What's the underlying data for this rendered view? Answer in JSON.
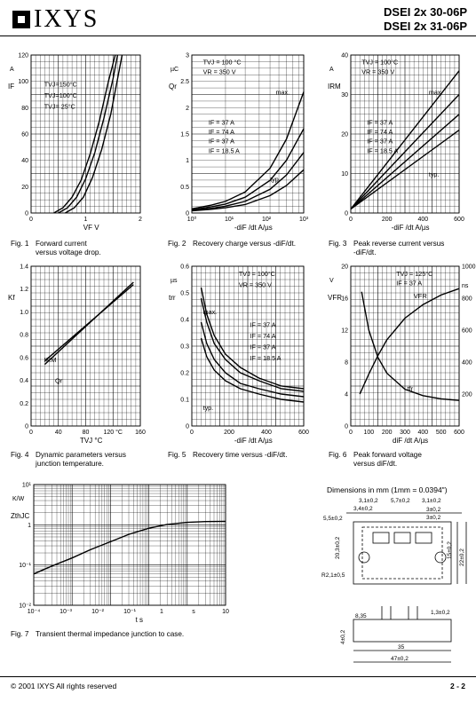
{
  "header": {
    "brand": "IXYS",
    "part_numbers": [
      "DSEI 2x 30-06P",
      "DSEI 2x 31-06P"
    ]
  },
  "figures": [
    {
      "id": "fig1",
      "num": "Fig. 1",
      "caption": [
        "Forward current",
        "versus voltage drop."
      ]
    },
    {
      "id": "fig2",
      "num": "Fig. 2",
      "caption": [
        "Recovery charge versus -diF/dt."
      ]
    },
    {
      "id": "fig3",
      "num": "Fig. 3",
      "caption": [
        "Peak reverse current versus",
        "-diF/dt."
      ]
    },
    {
      "id": "fig4",
      "num": "Fig. 4",
      "caption": [
        "Dynamic parameters versus",
        "junction temperature."
      ]
    },
    {
      "id": "fig5",
      "num": "Fig. 5",
      "caption": [
        "Recovery time versus -diF/dt."
      ]
    },
    {
      "id": "fig6",
      "num": "Fig. 6",
      "caption": [
        "Peak forward voltage",
        "versus diF/dt."
      ]
    },
    {
      "id": "fig7",
      "num": "Fig. 7",
      "caption": [
        "Transient thermal impedance junction to case."
      ]
    }
  ],
  "chart_data": [
    {
      "id": "fig1",
      "type": "line",
      "ylabel": "IF",
      "yunit": "A",
      "xlabel": "VF",
      "xunit": "V",
      "xlim": [
        0,
        2.4
      ],
      "ylim": [
        0,
        120
      ],
      "xticks": [
        "0",
        "1",
        "2"
      ],
      "yticks": [
        "0",
        "20",
        "40",
        "60",
        "80",
        "100",
        "120"
      ],
      "annotations": [
        "TVJ=150°C",
        "TVJ=100°C",
        "TVJ= 25°C"
      ],
      "series": [
        {
          "name": "TVJ=150°C",
          "x": [
            0.5,
            0.7,
            0.9,
            1.1,
            1.3,
            1.5,
            1.7,
            1.85
          ],
          "y": [
            0,
            4,
            12,
            25,
            45,
            70,
            100,
            120
          ]
        },
        {
          "name": "TVJ=100°C",
          "x": [
            0.6,
            0.8,
            1.0,
            1.2,
            1.4,
            1.6,
            1.8,
            1.9
          ],
          "y": [
            0,
            4,
            12,
            26,
            46,
            72,
            102,
            120
          ]
        },
        {
          "name": "TVJ= 25°C",
          "x": [
            0.75,
            0.95,
            1.15,
            1.35,
            1.55,
            1.75,
            1.9,
            2.0
          ],
          "y": [
            0,
            4,
            12,
            27,
            48,
            75,
            102,
            120
          ]
        }
      ]
    },
    {
      "id": "fig2",
      "type": "line",
      "ylabel": "Qr",
      "yunit": "µC",
      "xlabel": "-diF /dt",
      "xunit": "A/µs",
      "xscale": "log",
      "xlim": [
        100,
        1000
      ],
      "ylim": [
        0,
        3
      ],
      "xticks": [
        "10⁰",
        "10¹",
        "10²",
        "10³"
      ],
      "yticks": [
        "0",
        "0.5",
        "1",
        "1.5",
        "2",
        "2.5",
        "3"
      ],
      "annotations": [
        "TVJ = 100 °C",
        "VR = 350 V",
        "max.",
        "typ.",
        "IF = 37 A",
        "IF = 74 A",
        "IF = 37 A",
        "IF = 18.5 A"
      ],
      "series": [
        {
          "name": "max. IF = 74 A",
          "x": [
            100,
            150,
            200,
            300,
            500,
            700,
            1000
          ],
          "y": [
            0.08,
            0.15,
            0.22,
            0.4,
            0.85,
            1.4,
            2.3
          ]
        },
        {
          "name": "max. IF = 37 A",
          "x": [
            100,
            150,
            200,
            300,
            500,
            700,
            1000
          ],
          "y": [
            0.06,
            0.12,
            0.17,
            0.3,
            0.62,
            1.0,
            1.6
          ]
        },
        {
          "name": "typ. IF = 37 A",
          "x": [
            100,
            150,
            200,
            300,
            500,
            700,
            1000
          ],
          "y": [
            0.05,
            0.09,
            0.13,
            0.22,
            0.45,
            0.72,
            1.15
          ]
        },
        {
          "name": "typ. IF = 18.5 A",
          "x": [
            100,
            150,
            200,
            300,
            500,
            700,
            1000
          ],
          "y": [
            0.04,
            0.07,
            0.1,
            0.16,
            0.33,
            0.52,
            0.82
          ]
        }
      ]
    },
    {
      "id": "fig3",
      "type": "line",
      "ylabel": "IRM",
      "yunit": "A",
      "xlabel": "-diF /dt",
      "xunit": "A/µs",
      "xlim": [
        0,
        600
      ],
      "ylim": [
        0,
        40
      ],
      "xticks": [
        "0",
        "200",
        "400",
        "600"
      ],
      "yticks": [
        "0",
        "10",
        "20",
        "30",
        "40"
      ],
      "annotations": [
        "TVJ = 100°C",
        "VR = 350 V",
        "max.",
        "typ.",
        "IF = 37 A",
        "IF = 74 A",
        "IF = 37 A",
        "IF = 18.5 A"
      ],
      "series": [
        {
          "name": "max. IF = 74 A",
          "x": [
            0,
            600
          ],
          "y": [
            1,
            36
          ]
        },
        {
          "name": "max. IF = 37 A",
          "x": [
            0,
            600
          ],
          "y": [
            1,
            30
          ]
        },
        {
          "name": "typ. IF = 37 A",
          "x": [
            0,
            600
          ],
          "y": [
            1,
            25
          ]
        },
        {
          "name": "typ. IF = 18.5 A",
          "x": [
            0,
            600
          ],
          "y": [
            1,
            21
          ]
        }
      ]
    },
    {
      "id": "fig4",
      "type": "line",
      "ylabel": "Kf",
      "xlabel": "TVJ",
      "xunit": "°C",
      "xlim": [
        0,
        160
      ],
      "ylim": [
        0,
        1.4
      ],
      "xticks": [
        "0",
        "40",
        "80",
        "120 °C",
        "160"
      ],
      "yticks": [
        "0",
        "0.2",
        "0.4",
        "0.6",
        "0.8",
        "1.0",
        "1.2",
        "1.4"
      ],
      "series": [
        {
          "name": "IRM",
          "x": [
            20,
            150
          ],
          "y": [
            0.57,
            1.24
          ]
        },
        {
          "name": "Qr",
          "x": [
            20,
            150
          ],
          "y": [
            0.54,
            1.26
          ]
        }
      ]
    },
    {
      "id": "fig5",
      "type": "line",
      "ylabel": "trr",
      "yunit": "µs",
      "xlabel": "-diF /dt",
      "xunit": "A/µs",
      "xlim": [
        0,
        600
      ],
      "ylim": [
        0,
        0.6
      ],
      "xticks": [
        "0",
        "200",
        "400",
        "600"
      ],
      "yticks": [
        "0",
        "0.1",
        "0.2",
        "0.3",
        "0.4",
        "0.5",
        "0.6"
      ],
      "annotations": [
        "TVJ = 100°C",
        "VR = 350 V",
        "max.",
        "typ.",
        "IF = 37 A",
        "IF = 74 A",
        "IF = 37 A",
        "IF = 18.5 A"
      ],
      "series": [
        {
          "name": "max. IF = 74 A",
          "x": [
            50,
            80,
            120,
            180,
            260,
            360,
            480,
            600
          ],
          "y": [
            0.52,
            0.42,
            0.34,
            0.27,
            0.22,
            0.18,
            0.15,
            0.14
          ]
        },
        {
          "name": "max. IF = 37 A",
          "x": [
            50,
            80,
            120,
            180,
            260,
            360,
            480,
            600
          ],
          "y": [
            0.48,
            0.39,
            0.31,
            0.25,
            0.2,
            0.17,
            0.14,
            0.13
          ]
        },
        {
          "name": "typ. IF = 37 A",
          "x": [
            50,
            80,
            120,
            180,
            260,
            360,
            480,
            600
          ],
          "y": [
            0.39,
            0.31,
            0.25,
            0.2,
            0.16,
            0.14,
            0.12,
            0.11
          ]
        },
        {
          "name": "typ. IF = 18.5 A",
          "x": [
            50,
            80,
            120,
            180,
            260,
            360,
            480,
            600
          ],
          "y": [
            0.33,
            0.26,
            0.21,
            0.17,
            0.14,
            0.12,
            0.1,
            0.09
          ]
        }
      ]
    },
    {
      "id": "fig6",
      "type": "line",
      "ylabel": "VFR",
      "yunit": "V",
      "y2unit": "ns",
      "xlabel": "diF /dt",
      "xunit": "A/µs",
      "xlim": [
        0,
        600
      ],
      "ylim": [
        0,
        20
      ],
      "y2lim": [
        0,
        1000
      ],
      "xticks": [
        "0",
        "100",
        "200",
        "300",
        "400",
        "500",
        "600"
      ],
      "yticks": [
        "0",
        "4",
        "8",
        "12",
        "16",
        "20"
      ],
      "y2ticks": [
        "200",
        "400",
        "600",
        "800",
        "1000"
      ],
      "annotations": [
        "TVJ = 125°C",
        "IF = 37 A"
      ],
      "series": [
        {
          "name": "VFR",
          "x": [
            50,
            100,
            150,
            200,
            300,
            400,
            500,
            600
          ],
          "y": [
            4,
            6.5,
            8.8,
            10.8,
            13.5,
            15.2,
            16.4,
            17.2
          ]
        },
        {
          "name": "tfr",
          "axis": "right",
          "x": [
            60,
            100,
            150,
            200,
            300,
            400,
            500,
            600
          ],
          "y": [
            840,
            600,
            430,
            330,
            230,
            190,
            170,
            160
          ]
        }
      ]
    },
    {
      "id": "fig7",
      "type": "line",
      "ylabel": "ZthJC",
      "yunit": "K/W",
      "xlabel": "t",
      "xunit": "s",
      "xscale": "log",
      "yscale": "log",
      "xlim": [
        0.0001,
        10
      ],
      "ylim": [
        0.01,
        10
      ],
      "xticks": [
        "10⁻⁴",
        "10⁻³",
        "10⁻²",
        "10⁻¹",
        "1",
        "s",
        "10"
      ],
      "yticks": [
        "10⁻²",
        "10⁻¹",
        "1",
        "10¹"
      ],
      "series": [
        {
          "name": "ZthJC",
          "x": [
            0.0001,
            0.0003,
            0.001,
            0.003,
            0.01,
            0.03,
            0.1,
            0.3,
            1,
            3,
            10
          ],
          "y": [
            0.06,
            0.095,
            0.15,
            0.24,
            0.38,
            0.58,
            0.82,
            1.02,
            1.15,
            1.2,
            1.22
          ]
        }
      ]
    }
  ],
  "dimensions": {
    "title": "Dimensions in mm (1mm = 0.0394\")",
    "labels": [
      "3,1±0,2",
      "5,7±0,2",
      "3,1±0,2",
      "3,4±0,2",
      "5,5±0,2",
      "3±0,2",
      "3±0,2",
      "R2,1±0,5",
      "15±0,2",
      "22±0,2",
      "20,3±0,2",
      "4±0,2",
      "1,3±0,2",
      "8,35",
      "35",
      "47±0,2"
    ]
  },
  "footer": {
    "copyright": "© 2001 IXYS All rights reserved",
    "page": "2 - 2"
  }
}
